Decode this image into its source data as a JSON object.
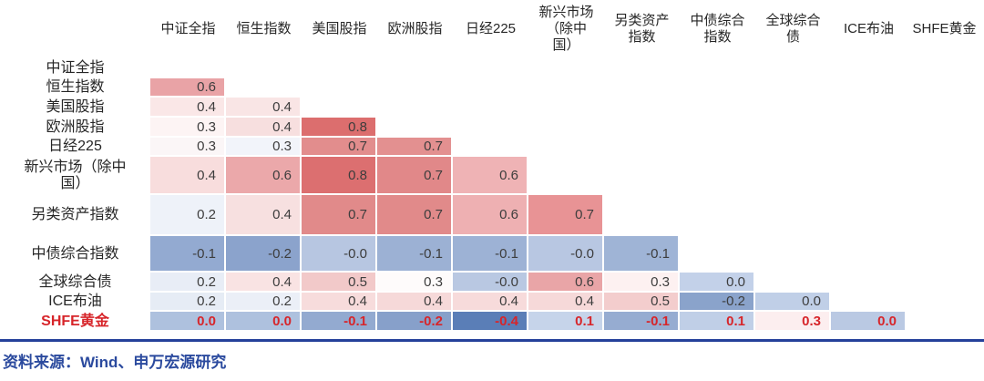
{
  "chart_data": {
    "type": "heatmap",
    "title": "",
    "columns": [
      "中证全指",
      "恒生指数",
      "美国股指",
      "欧洲股指",
      "日经225",
      "新兴市场\n（除中\n国）",
      "另类资产\n指数",
      "中债综合\n指数",
      "全球综合\n债",
      "ICE布油",
      "SHFE黄金"
    ],
    "rows": [
      {
        "label": "中证全指",
        "highlight": false,
        "cells": []
      },
      {
        "label": "恒生指数",
        "highlight": false,
        "cells": [
          {
            "value": "0.6",
            "color": "#e9a3a6"
          }
        ]
      },
      {
        "label": "美国股指",
        "highlight": false,
        "cells": [
          {
            "value": "0.4",
            "color": "#fae7e7"
          },
          {
            "value": "0.4",
            "color": "#f9e5e5"
          }
        ]
      },
      {
        "label": "欧洲股指",
        "highlight": false,
        "cells": [
          {
            "value": "0.3",
            "color": "#fdf4f4"
          },
          {
            "value": "0.4",
            "color": "#f7dfdf"
          },
          {
            "value": "0.8",
            "color": "#dc6e6e"
          }
        ]
      },
      {
        "label": "日经225",
        "highlight": false,
        "cells": [
          {
            "value": "0.3",
            "color": "#fbf6f7"
          },
          {
            "value": "0.3",
            "color": "#f2f4fa"
          },
          {
            "value": "0.7",
            "color": "#e28d8d"
          },
          {
            "value": "0.7",
            "color": "#e39090"
          }
        ]
      },
      {
        "label": "新兴市场（除中\n国）",
        "highlight": false,
        "cells": [
          {
            "value": "0.4",
            "color": "#f8dddd"
          },
          {
            "value": "0.6",
            "color": "#eba8aa"
          },
          {
            "value": "0.8",
            "color": "#dc6f70"
          },
          {
            "value": "0.7",
            "color": "#e18889"
          },
          {
            "value": "0.6",
            "color": "#efb3b5"
          }
        ]
      },
      {
        "label": "另类资产指数",
        "highlight": false,
        "cells": [
          {
            "value": "0.2",
            "color": "#eef2f9"
          },
          {
            "value": "0.4",
            "color": "#f7e0e0"
          },
          {
            "value": "0.7",
            "color": "#e18a8a"
          },
          {
            "value": "0.7",
            "color": "#e18a8a"
          },
          {
            "value": "0.6",
            "color": "#eeb0b2"
          },
          {
            "value": "0.7",
            "color": "#e89395"
          }
        ]
      },
      {
        "label": "中债综合指数",
        "highlight": false,
        "cells": [
          {
            "value": "-0.1",
            "color": "#93aad1"
          },
          {
            "value": "-0.2",
            "color": "#8ba3cc"
          },
          {
            "value": "-0.0",
            "color": "#b7c6e1"
          },
          {
            "value": "-0.1",
            "color": "#9cb1d4"
          },
          {
            "value": "-0.1",
            "color": "#9db2d5"
          },
          {
            "value": "-0.0",
            "color": "#b8c7e2"
          },
          {
            "value": "-0.1",
            "color": "#9fb4d6"
          }
        ]
      },
      {
        "label": "全球综合债",
        "highlight": false,
        "cells": [
          {
            "value": "0.2",
            "color": "#e8edf6"
          },
          {
            "value": "0.4",
            "color": "#f9e3e3"
          },
          {
            "value": "0.5",
            "color": "#f2c9c9"
          },
          {
            "value": "0.3",
            "color": "#fefbfb"
          },
          {
            "value": "-0.0",
            "color": "#b9c8e2"
          },
          {
            "value": "0.6",
            "color": "#e9a5a7"
          },
          {
            "value": "0.3",
            "color": "#fdf1f1"
          },
          {
            "value": "0.0",
            "color": "#c3d1e9"
          }
        ]
      },
      {
        "label": "ICE布油",
        "highlight": false,
        "cells": [
          {
            "value": "0.2",
            "color": "#e6ecf5"
          },
          {
            "value": "0.2",
            "color": "#ebeff7"
          },
          {
            "value": "0.4",
            "color": "#f7dcdc"
          },
          {
            "value": "0.4",
            "color": "#f6d9d9"
          },
          {
            "value": "0.4",
            "color": "#f7dbdb"
          },
          {
            "value": "0.4",
            "color": "#f6d9d9"
          },
          {
            "value": "0.5",
            "color": "#f3cdcd"
          },
          {
            "value": "-0.2",
            "color": "#8aa3cb"
          },
          {
            "value": "0.0",
            "color": "#c0cfe7"
          }
        ]
      },
      {
        "label": "SHFE黄金",
        "highlight": true,
        "cells": [
          {
            "value": "0.0",
            "color": "#aec1de"
          },
          {
            "value": "0.0",
            "color": "#aec1de"
          },
          {
            "value": "-0.1",
            "color": "#93aad0"
          },
          {
            "value": "-0.2",
            "color": "#87a0ca"
          },
          {
            "value": "-0.4",
            "color": "#5a7eb7"
          },
          {
            "value": "0.1",
            "color": "#c6d4ea"
          },
          {
            "value": "-0.1",
            "color": "#96acd1"
          },
          {
            "value": "0.1",
            "color": "#c0cfe7"
          },
          {
            "value": "0.3",
            "color": "#fceeef"
          },
          {
            "value": "0.0",
            "color": "#bac9e3"
          }
        ]
      }
    ],
    "colors": {
      "positive_max": "#dc6e6e",
      "negative_max": "#5a7eb7",
      "highlight_text": "#d7252a",
      "value_text": "#3d3d3d"
    }
  },
  "footer": {
    "source": "资料来源：Wind、申万宏源研究",
    "text_color": "#2b4a9e",
    "divider_color": "#24409a"
  }
}
